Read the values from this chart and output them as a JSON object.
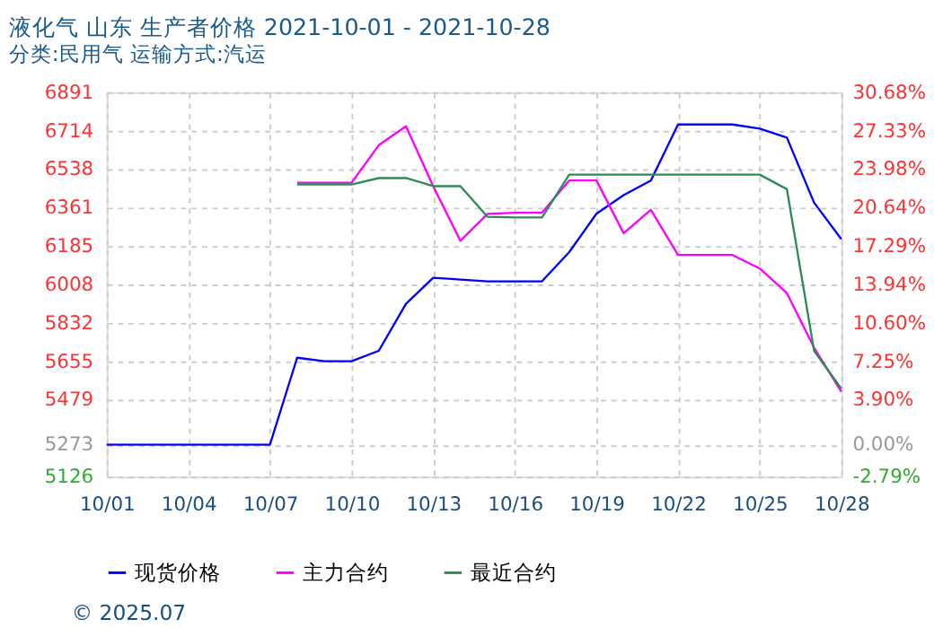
{
  "chart_data": {
    "type": "line",
    "title": "液化气 山东 生产者价格 2021-10-01 - 2021-10-28",
    "subtitle": "分类:民用气 运输方式:汽运",
    "annotations": [
      "© 2025.07"
    ],
    "x": [
      "--10-01",
      "--10-02",
      "--10-03",
      "--10-04",
      "--10-05",
      "--10-06",
      "--10-07",
      "--10-08",
      "--10-09",
      "--10-10",
      "--10-11",
      "--10-12",
      "--10-13",
      "--10-14",
      "--10-15",
      "--10-16",
      "--10-17",
      "--10-18",
      "--10-19",
      "--10-20",
      "--10-21",
      "--10-22",
      "--10-23",
      "--10-24",
      "--10-25",
      "--10-26",
      "--10-27",
      "--10-28"
    ],
    "series": [
      {
        "name": "现货价格",
        "color": "#0000ff",
        "values": [
          5273,
          5273,
          5273,
          5273,
          5273,
          5273,
          5273,
          5672,
          5656,
          5656,
          5704,
          5920,
          6039,
          6031,
          6023,
          6023,
          6023,
          6157,
          6333,
          6419,
          6486,
          6743,
          6743,
          6743,
          6724,
          6683,
          6384,
          6217
        ]
      },
      {
        "name": "主力合约",
        "color": "#ff00ff",
        "values": [
          null,
          null,
          null,
          null,
          null,
          null,
          null,
          6476,
          6476,
          6476,
          6648,
          6735,
          6460,
          6209,
          6333,
          6338,
          6338,
          6486,
          6486,
          6244,
          6351,
          6144,
          6144,
          6144,
          6082,
          5969,
          5718,
          5516
        ]
      },
      {
        "name": "最近合约",
        "color": "#2e8b57",
        "values": [
          null,
          null,
          null,
          null,
          null,
          null,
          null,
          6468,
          6468,
          6468,
          6497,
          6497,
          6460,
          6460,
          6319,
          6316,
          6316,
          6513,
          6513,
          6513,
          6513,
          6513,
          6513,
          6513,
          6513,
          6446,
          5704,
          5530
        ]
      }
    ],
    "xlim": [
      "--10-01",
      "--10-28"
    ],
    "xticks": [
      {
        "value": "--10-01",
        "label": "10/01"
      },
      {
        "value": "--10-04",
        "label": "10/04"
      },
      {
        "value": "--10-07",
        "label": "10/07"
      },
      {
        "value": "--10-10",
        "label": "10/10"
      },
      {
        "value": "--10-13",
        "label": "10/13"
      },
      {
        "value": "--10-16",
        "label": "10/16"
      },
      {
        "value": "--10-19",
        "label": "10/19"
      },
      {
        "value": "--10-22",
        "label": "10/22"
      },
      {
        "value": "--10-25",
        "label": "10/25"
      },
      {
        "value": "--10-28",
        "label": "10/28"
      }
    ],
    "ylim": [
      5126,
      6891
    ],
    "yticks": [
      5126,
      5273,
      5479,
      5655,
      5832,
      6008,
      6185,
      6361,
      6538,
      6714,
      6891
    ],
    "y2lim": [
      -2.79,
      30.68
    ],
    "y2ticks": [
      {
        "value": -2.79,
        "label": "-2.79%"
      },
      {
        "value": 0,
        "label": "0.00%"
      },
      {
        "value": 3.9,
        "label": "3.90%"
      },
      {
        "value": 7.25,
        "label": "7.25%"
      },
      {
        "value": 10.6,
        "label": "10.60%"
      },
      {
        "value": 13.94,
        "label": "13.94%"
      },
      {
        "value": 17.29,
        "label": "17.29%"
      },
      {
        "value": 20.64,
        "label": "20.64%"
      },
      {
        "value": 23.98,
        "label": "23.98%"
      },
      {
        "value": 27.33,
        "label": "27.33%"
      },
      {
        "value": 30.68,
        "label": "30.68%"
      }
    ],
    "grid": true,
    "legend": "bottom",
    "marker": "none",
    "line_style": "solid"
  }
}
